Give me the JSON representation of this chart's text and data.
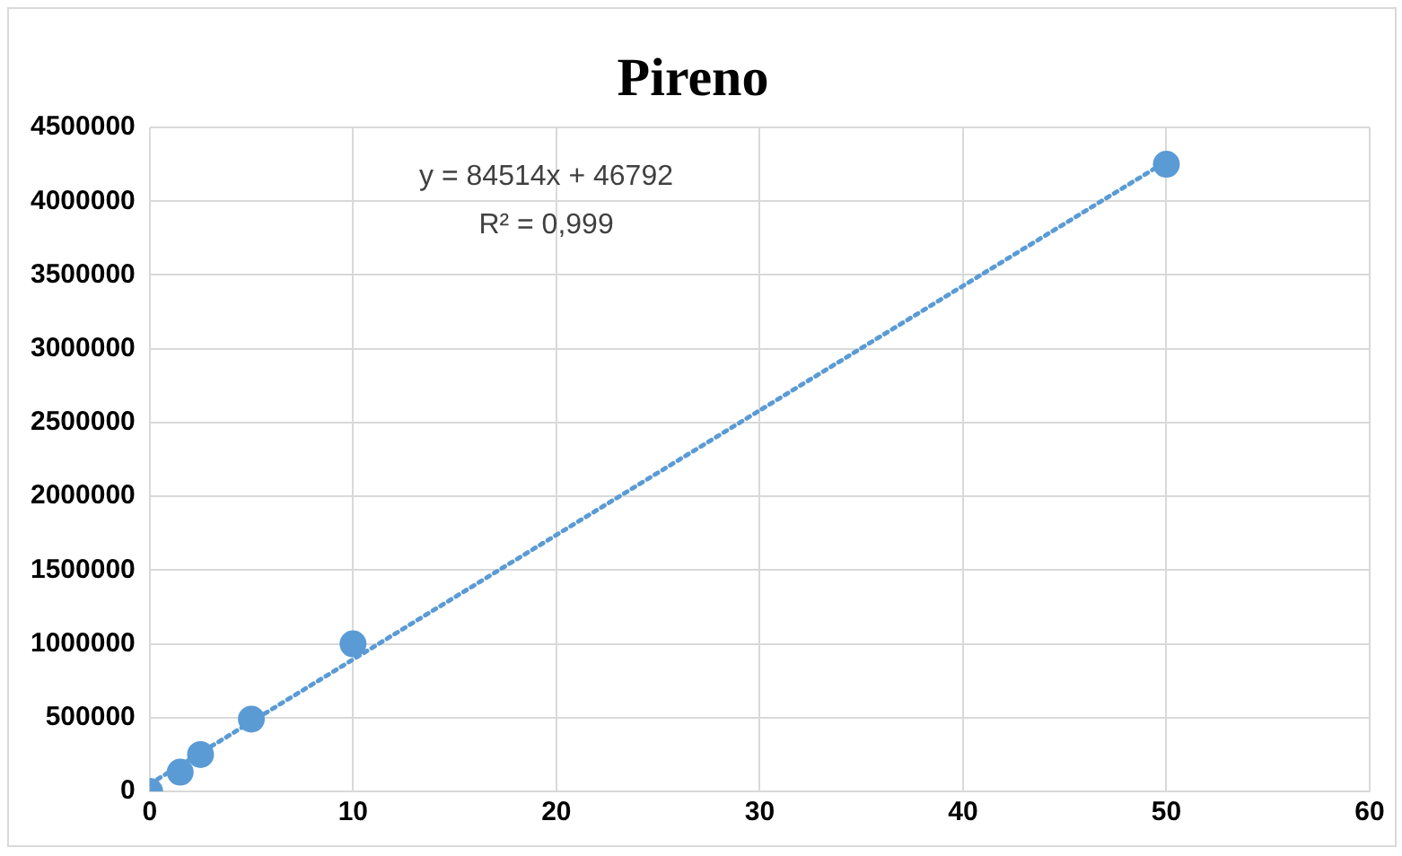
{
  "chart_data": {
    "type": "scatter",
    "title": "Pireno",
    "series": [
      {
        "color": "#5b9bd5",
        "x": [
          0,
          1.5,
          2.5,
          5,
          10,
          50
        ],
        "values": [
          0,
          130000,
          250000,
          490000,
          1000000,
          4250000
        ],
        "marker": "circle"
      },
      {
        "type": "line",
        "color": "#5b9bd5",
        "x": [
          0,
          50
        ],
        "values": [
          50000,
          4270000
        ],
        "marker": "none",
        "line_style": "dotted"
      }
    ],
    "annotations": [
      "y = 84514x + 46792",
      "R² = 0,999"
    ],
    "xlim": [
      0,
      60
    ],
    "xticks": [
      0,
      10,
      20,
      30,
      40,
      50,
      60
    ],
    "ylim": [
      0,
      4500000
    ],
    "yticks": [
      0,
      500000,
      1000000,
      1500000,
      2000000,
      2500000,
      3000000,
      3500000,
      4000000,
      4500000
    ],
    "grid": true,
    "legend": false
  }
}
